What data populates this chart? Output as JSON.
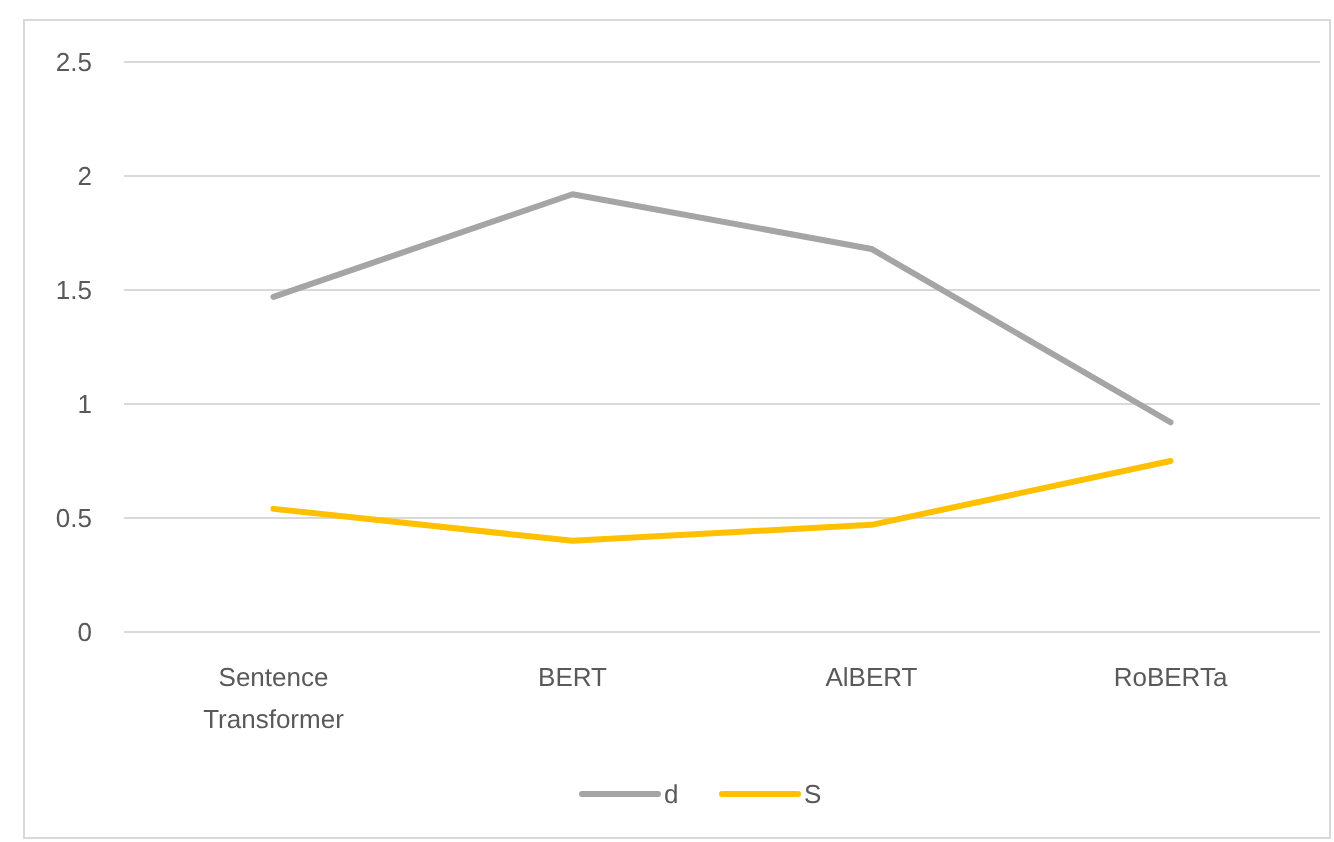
{
  "chart_data": {
    "type": "line",
    "categories": [
      "Sentence Transformer",
      "BERT",
      "AlBERT",
      "RoBERTa"
    ],
    "series": [
      {
        "name": "d",
        "color": "#a5a5a5",
        "values": [
          1.47,
          1.92,
          1.68,
          0.92
        ]
      },
      {
        "name": "S",
        "color": "#ffc000",
        "values": [
          0.54,
          0.4,
          0.47,
          0.75
        ]
      }
    ],
    "ylim": [
      0,
      2.5
    ],
    "yticks": [
      0,
      0.5,
      1,
      1.5,
      2,
      2.5
    ],
    "grid": "y",
    "legend": "bottom",
    "marker": "none",
    "line_style": "solid"
  }
}
